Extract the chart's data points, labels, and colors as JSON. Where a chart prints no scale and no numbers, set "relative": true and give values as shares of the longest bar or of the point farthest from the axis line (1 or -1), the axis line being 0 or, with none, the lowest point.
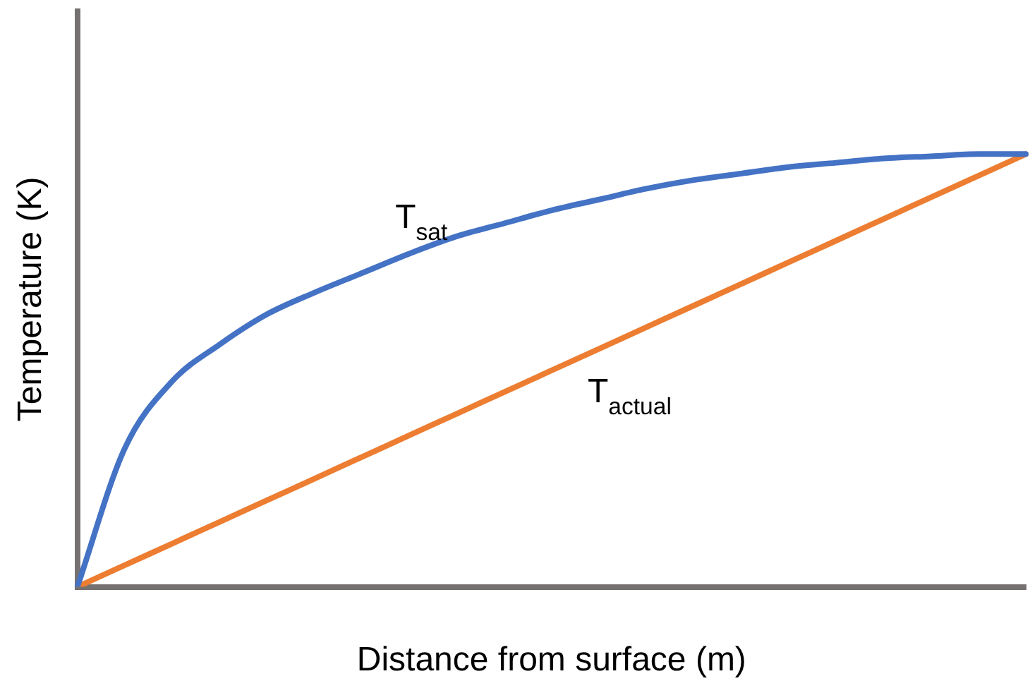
{
  "chart_data": {
    "type": "line",
    "relative": true,
    "xlabel": "Distance from surface (m)",
    "ylabel": "Temperature (K)",
    "grid": false,
    "legend": false,
    "marker": "none",
    "line_style": "solid",
    "categories": [
      null,
      null,
      null,
      null,
      null,
      null,
      null,
      null,
      null,
      null,
      null,
      null,
      null,
      null,
      null,
      null,
      null,
      null,
      null,
      null,
      null
    ],
    "series": [
      {
        "name": "T$_{sat}$",
        "color": "#4472c4",
        "values": [
          0,
          0.32,
          0.475,
          0.56,
          0.63,
          0.68,
          0.725,
          0.77,
          0.81,
          0.84,
          0.87,
          0.895,
          0.92,
          0.94,
          0.955,
          0.97,
          0.98,
          0.99,
          0.995,
          1,
          1
        ]
      },
      {
        "name": "T$_{actual}$",
        "color": "#ed7d31",
        "values": [
          0,
          0.05,
          0.1,
          0.15,
          0.2,
          0.25,
          0.3,
          0.35,
          0.4,
          0.45,
          0.5,
          0.55,
          0.6,
          0.65,
          0.7,
          0.75,
          0.8,
          0.85,
          0.9,
          0.95,
          1
        ]
      }
    ]
  }
}
